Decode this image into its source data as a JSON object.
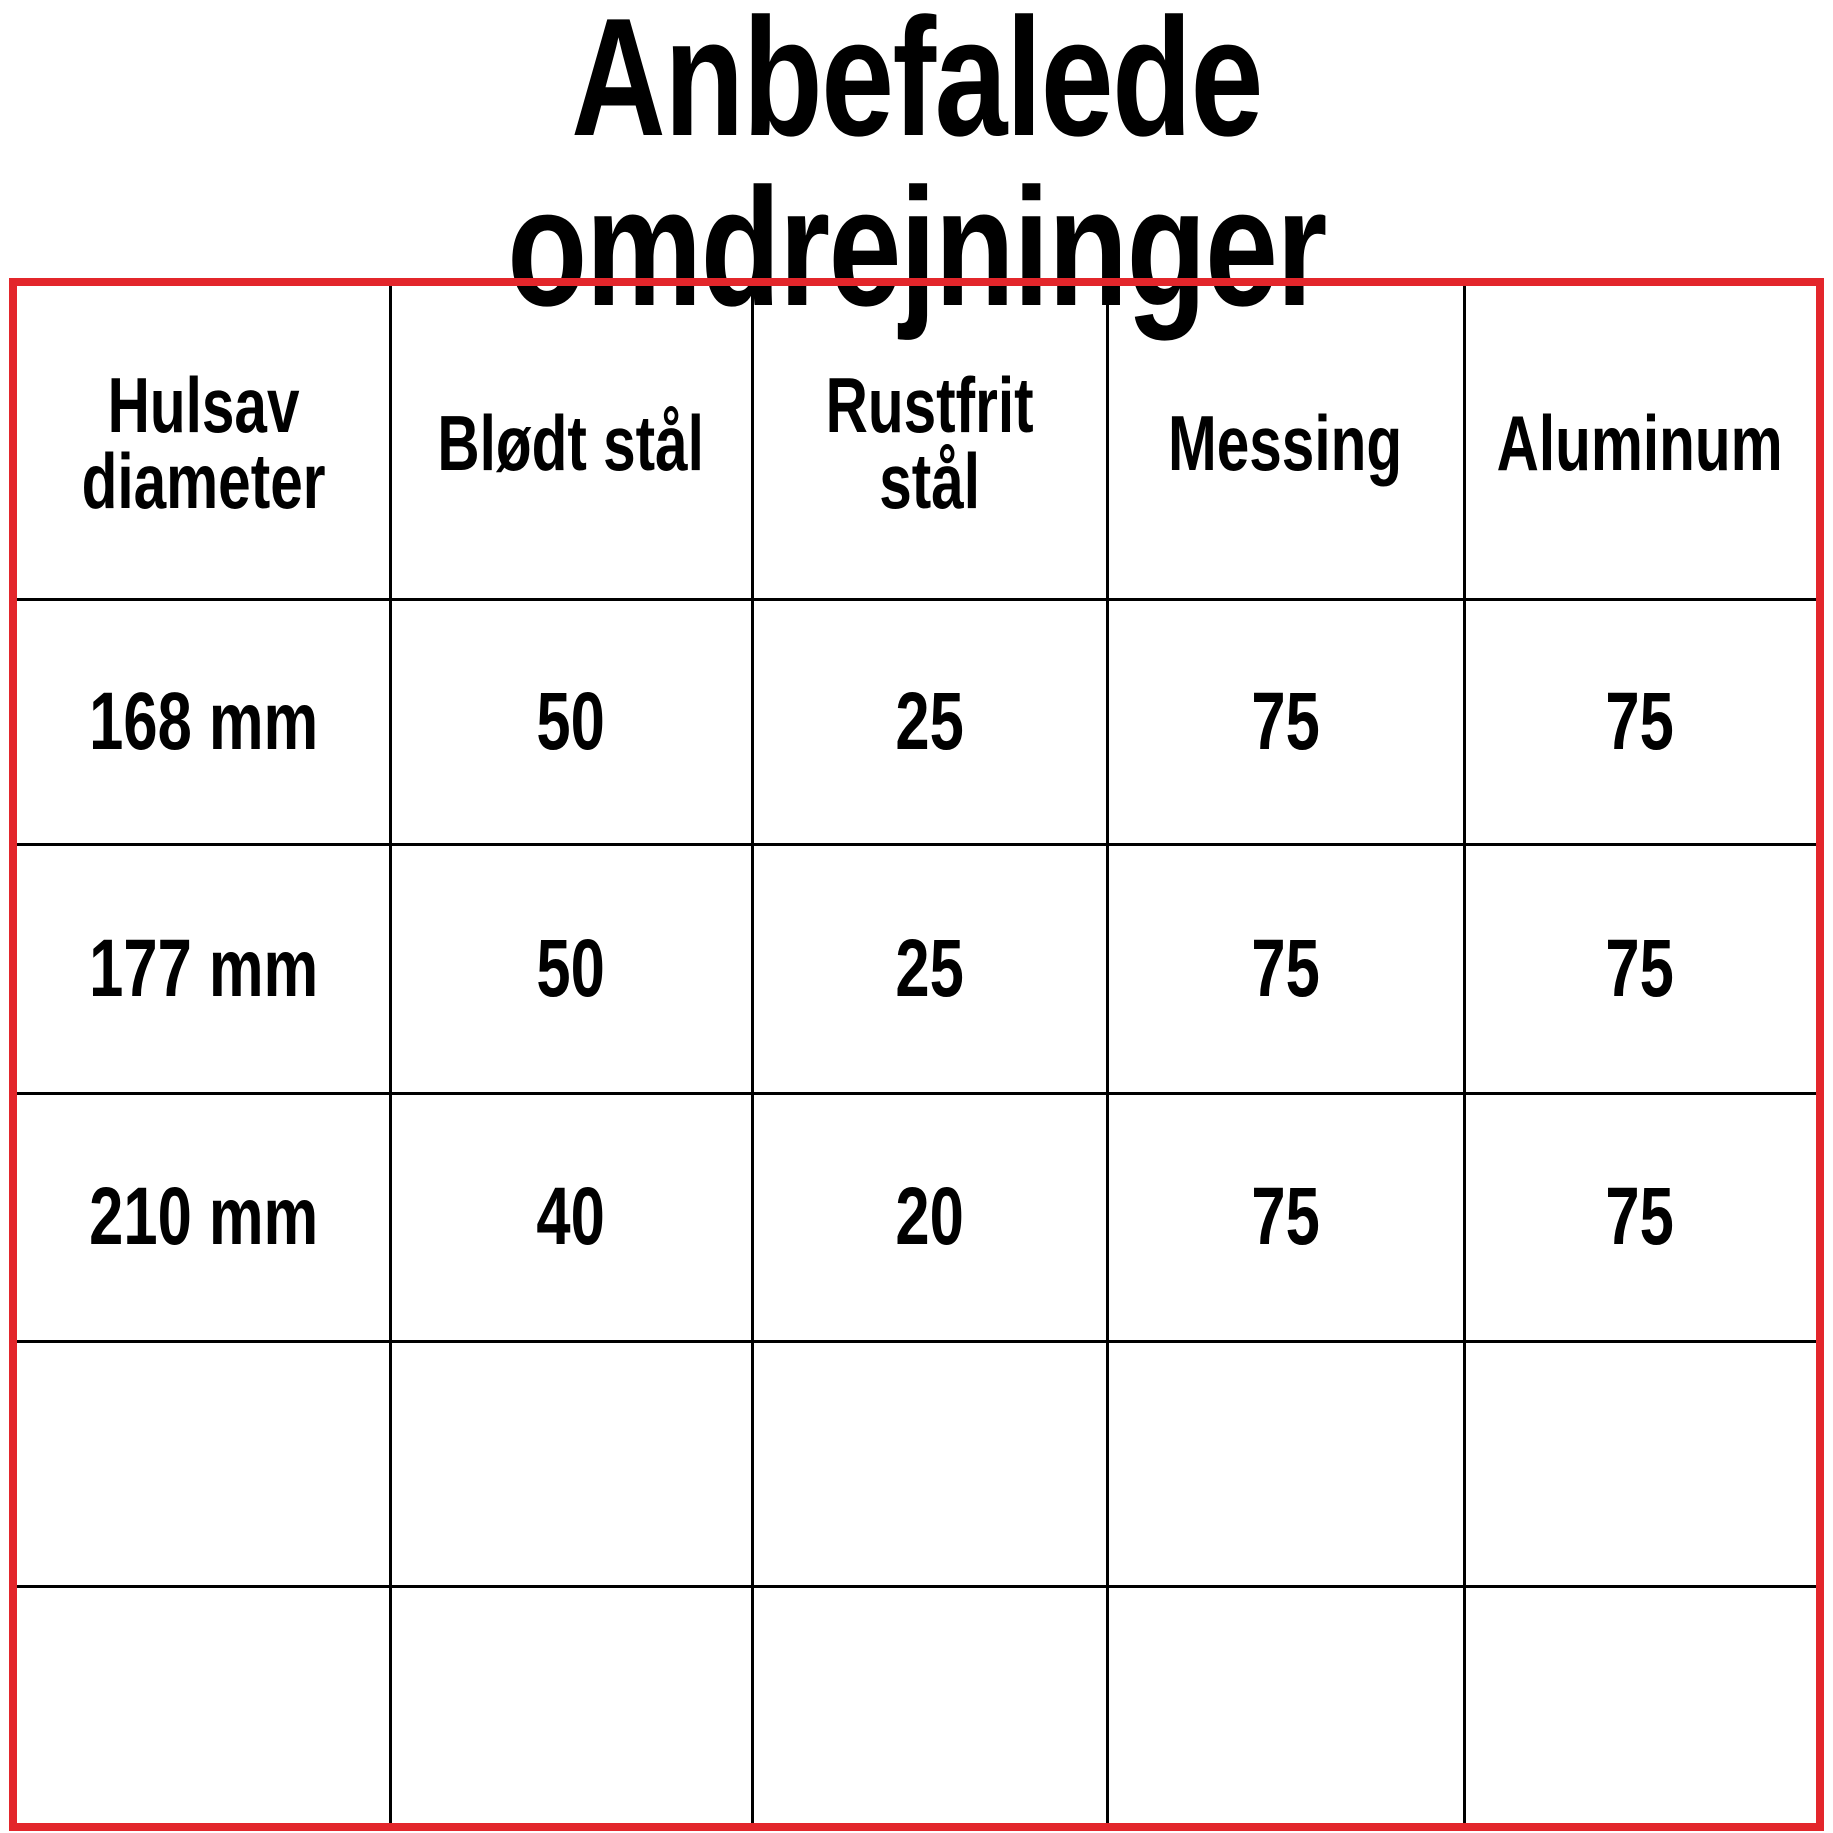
{
  "title": "Anbefalede omdrejninger",
  "border_color": "#e3262b",
  "table": {
    "headers": [
      "Hulsav\ndiameter",
      "Blødt stål",
      "Rustfrit\nstål",
      "Messing",
      "Aluminum"
    ],
    "rows": [
      [
        "168 mm",
        "50",
        "25",
        "75",
        "75"
      ],
      [
        "177 mm",
        "50",
        "25",
        "75",
        "75"
      ],
      [
        "210 mm",
        "40",
        "20",
        "75",
        "75"
      ],
      [
        "",
        "",
        "",
        "",
        ""
      ],
      [
        "",
        "",
        "",
        "",
        ""
      ]
    ]
  }
}
